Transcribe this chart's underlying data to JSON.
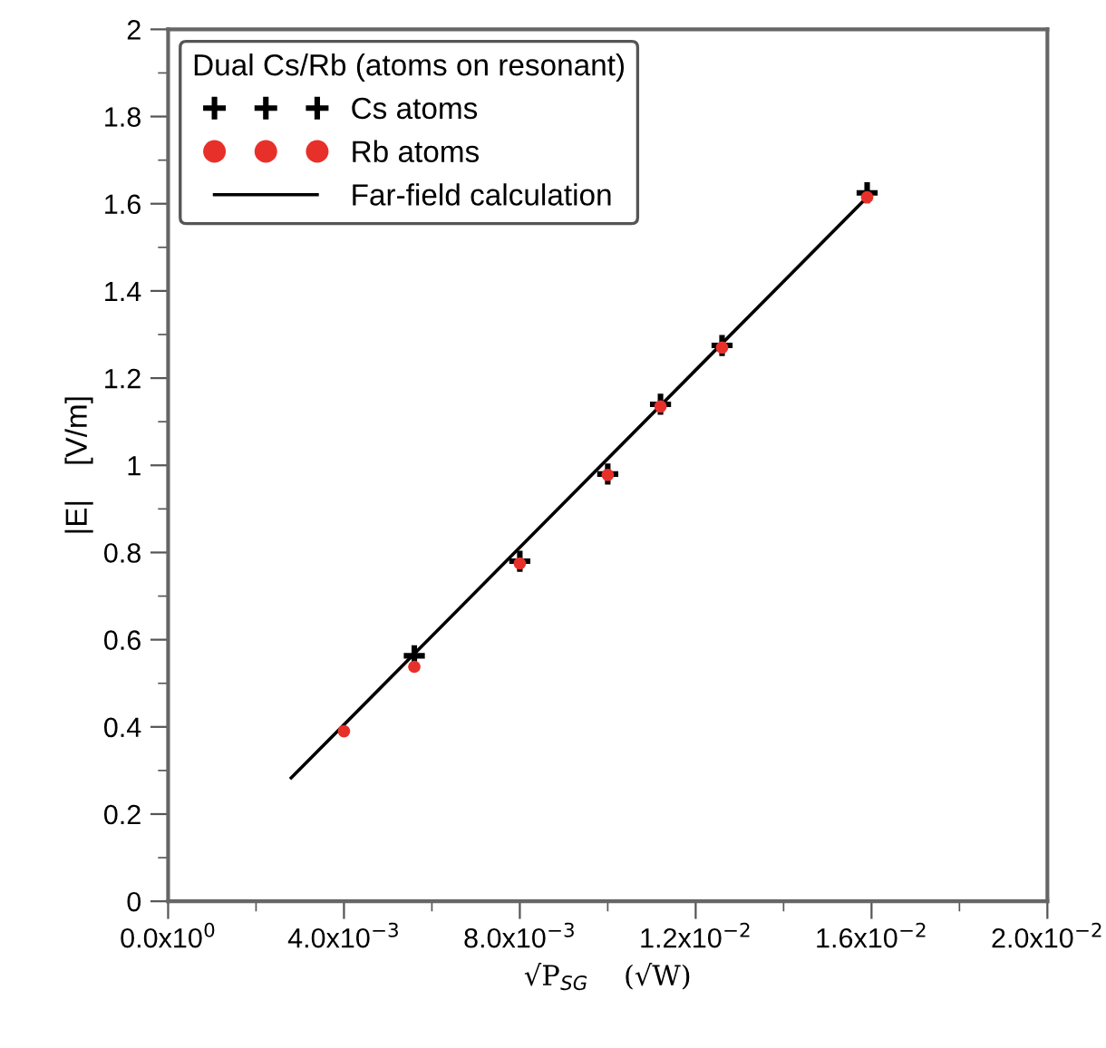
{
  "chart_data": {
    "type": "scatter",
    "xlabel": "√P$_{SG}$    (√W)",
    "ylabel": "|E|    [V/m]",
    "legend_title": "Dual Cs/Rb (atoms on resonant)",
    "legend": "top left",
    "grid": false,
    "xlim": [
      0,
      0.02
    ],
    "ylim": [
      0,
      2
    ],
    "xticks": [
      {
        "value": 0,
        "label": "0.0x10$^{0}$"
      },
      {
        "value": 0.004,
        "label": "4.0x10$^{−3}$"
      },
      {
        "value": 0.008,
        "label": "8.0x10$^{−3}$"
      },
      {
        "value": 0.012,
        "label": "1.2x10$^{−2}$"
      },
      {
        "value": 0.016,
        "label": "1.6x10$^{−2}$"
      },
      {
        "value": 0.02,
        "label": "2.0x10$^{−2}$"
      }
    ],
    "yticks": [
      0,
      0.2,
      0.4,
      0.6,
      0.8,
      1,
      1.2,
      1.4,
      1.6,
      1.8,
      2
    ],
    "series": [
      {
        "name": "Cs atoms",
        "color": "#000000",
        "marker": "cross",
        "x": [
          0.0056,
          0.008,
          0.01,
          0.0112,
          0.0126,
          0.0159
        ],
        "values": [
          0.563,
          0.78,
          0.98,
          1.14,
          1.275,
          1.625
        ]
      },
      {
        "name": "Rb atoms",
        "color": "#e8302a",
        "marker": "circle",
        "x": [
          0.004,
          0.0056,
          0.008,
          0.01,
          0.0112,
          0.0126,
          0.0159
        ],
        "values": [
          0.39,
          0.538,
          0.775,
          0.978,
          1.135,
          1.27,
          1.615
        ]
      },
      {
        "name": "Far-field calculation",
        "type": "line",
        "color": "#000000",
        "marker": "none",
        "line_style": "solid",
        "x": [
          0.0028,
          0.0159
        ],
        "values": [
          0.283,
          1.615
        ]
      }
    ]
  }
}
